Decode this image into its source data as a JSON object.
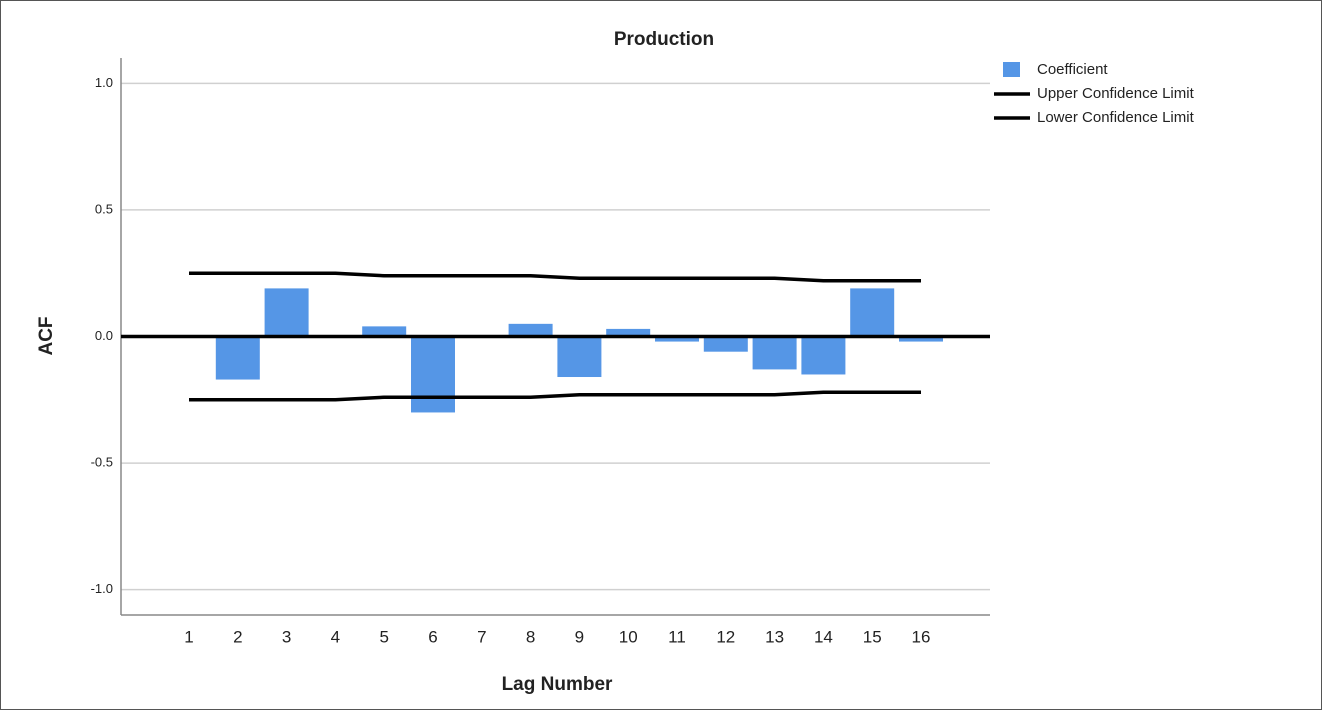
{
  "chart_data": {
    "type": "bar",
    "title": "Production",
    "x_label": "Lag Number",
    "y_label": "ACF",
    "categories": [
      "1",
      "2",
      "3",
      "4",
      "5",
      "6",
      "7",
      "8",
      "9",
      "10",
      "11",
      "12",
      "13",
      "14",
      "15",
      "16"
    ],
    "series": [
      {
        "name": "Coefficient",
        "kind": "bar",
        "color": "#5596e6",
        "values": [
          0,
          -0.17,
          0.19,
          0,
          0.04,
          -0.3,
          0,
          0.05,
          -0.16,
          0.03,
          -0.02,
          -0.06,
          -0.13,
          -0.15,
          0.19,
          -0.02
        ]
      },
      {
        "name": "Upper Confidence Limit",
        "kind": "line",
        "color": "#000000",
        "values": [
          0.25,
          0.25,
          0.25,
          0.25,
          0.24,
          0.24,
          0.24,
          0.24,
          0.23,
          0.23,
          0.23,
          0.23,
          0.23,
          0.22,
          0.22,
          0.22
        ]
      },
      {
        "name": "Lower Confidence Limit",
        "kind": "line",
        "color": "#000000",
        "values": [
          -0.25,
          -0.25,
          -0.25,
          -0.25,
          -0.24,
          -0.24,
          -0.24,
          -0.24,
          -0.23,
          -0.23,
          -0.23,
          -0.23,
          -0.23,
          -0.22,
          -0.22,
          -0.22
        ]
      }
    ],
    "ylim": [
      -1.1,
      1.1
    ],
    "yticks": [
      {
        "value": 1,
        "label": "1.0"
      },
      {
        "value": 0.5,
        "label": "0.5"
      },
      {
        "value": 0,
        "label": "0.0"
      },
      {
        "value": -0.5,
        "label": "-0.5"
      },
      {
        "value": -1,
        "label": "-1.0"
      }
    ],
    "grid": true,
    "legend": "top-right"
  }
}
